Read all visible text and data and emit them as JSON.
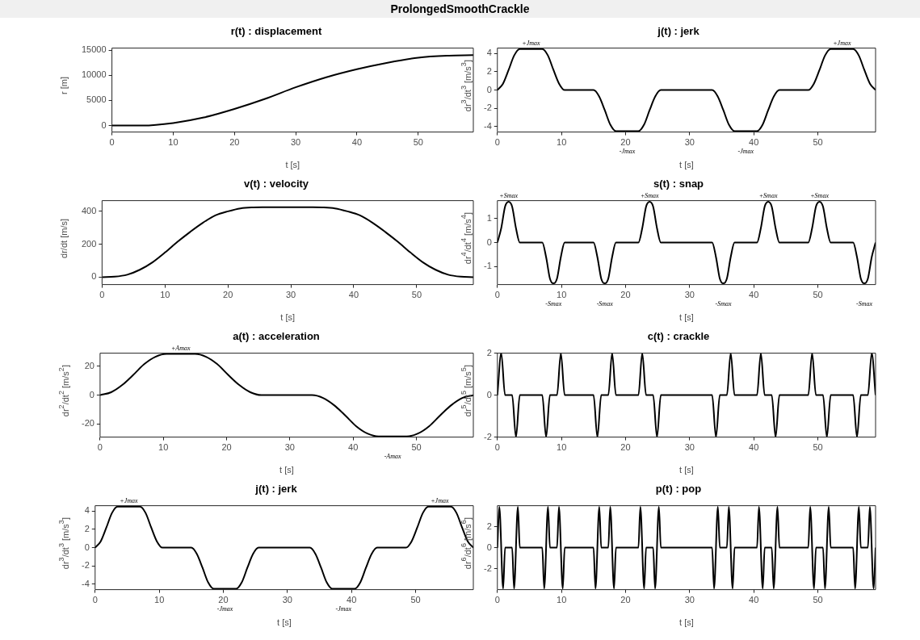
{
  "chart_data": [
    {
      "type": "line",
      "title": "ProlongedSmoothCrackle",
      "subtitle": "r(t) : displacement",
      "xlabel": "t [s]",
      "ylabel": "r [m]",
      "color": "#000000",
      "marker": "none",
      "xlim": [
        0,
        59
      ],
      "xticks": [
        0,
        10,
        20,
        30,
        40,
        50
      ],
      "ylim": [
        -1300,
        15400
      ],
      "yticks": [
        0,
        5000,
        10000,
        15000
      ],
      "x": [
        0,
        5,
        10,
        15,
        20,
        25,
        30,
        35,
        40,
        45,
        50,
        55,
        59
      ],
      "values": [
        0,
        0,
        500,
        1600,
        3300,
        5300,
        7600,
        9600,
        11200,
        12500,
        13500,
        13900,
        14000
      ]
    },
    {
      "type": "line",
      "title": "v(t) : velocity",
      "xlabel": "t [s]",
      "ylabel": "dr/dt [m/s]",
      "color": "#000000",
      "marker": "none",
      "xlim": [
        0,
        59
      ],
      "xticks": [
        0,
        10,
        20,
        30,
        40,
        50
      ],
      "ylim": [
        -45,
        465
      ],
      "yticks": [
        0,
        200,
        400
      ],
      "x": [
        0,
        2,
        4,
        6,
        8,
        10,
        12,
        14,
        16,
        18,
        20,
        22,
        24,
        25.5,
        33.5,
        35,
        37,
        39,
        41,
        43,
        45,
        47,
        49,
        51,
        53,
        55,
        57,
        59
      ],
      "values": [
        0,
        3,
        15,
        45,
        90,
        150,
        215,
        275,
        330,
        375,
        400,
        418,
        424,
        425,
        425,
        424,
        418,
        400,
        375,
        330,
        275,
        215,
        150,
        90,
        45,
        15,
        3,
        0
      ]
    },
    {
      "type": "line",
      "title": "a(t) : acceleration",
      "xlabel": "t [s]",
      "ylabel": "dr$^{2}$/dt$^{2}$ [m/s$^{2}$]",
      "color": "#000000",
      "marker": "none",
      "xlim": [
        0,
        59
      ],
      "xticks": [
        0,
        10,
        20,
        30,
        40,
        50
      ],
      "ylim": [
        -29,
        29
      ],
      "yticks": [
        -20,
        0,
        20
      ],
      "x": [
        0,
        1.75,
        3.5,
        5.25,
        7,
        8.75,
        10.5,
        15,
        16.75,
        18.5,
        20.25,
        22,
        23.75,
        25.5,
        33.5,
        35.25,
        37,
        38.75,
        40.5,
        42.25,
        44,
        48.5,
        50.25,
        52,
        53.75,
        55.5,
        57.25,
        59
      ],
      "values": [
        0,
        2,
        7,
        14,
        21.5,
        26.5,
        28.5,
        28.5,
        26.5,
        21.5,
        14,
        7,
        2,
        0,
        0,
        -2,
        -7,
        -14,
        -21.5,
        -26.5,
        -28.5,
        -28.5,
        -26.5,
        -21.5,
        -14,
        -7,
        -2,
        0
      ],
      "annotations": [
        {
          "text": "+Amax",
          "x": 12.75,
          "y": 28.5
        },
        {
          "text": "-Amax",
          "x": 46.25,
          "y": -28.5
        }
      ]
    },
    {
      "type": "line",
      "title": "j(t) : jerk",
      "xlabel": "t [s]",
      "ylabel": "dr$^{3}$/dt$^{3}$ [m/s$^{3}$]",
      "color": "#000000",
      "marker": "none",
      "xlim": [
        0,
        59
      ],
      "xticks": [
        0,
        10,
        20,
        30,
        40,
        50
      ],
      "ylim": [
        -4.6,
        4.6
      ],
      "yticks": [
        -4,
        -2,
        0,
        2,
        4
      ],
      "x": [
        0,
        0.875,
        1.75,
        2.625,
        3.5,
        7,
        7.875,
        8.75,
        9.625,
        10.5,
        15,
        15.875,
        16.75,
        17.625,
        18.5,
        22,
        22.875,
        23.75,
        24.625,
        25.5,
        33.5,
        34.375,
        35.25,
        36.125,
        37,
        40.5,
        41.375,
        42.25,
        43.125,
        44,
        48.5,
        49.375,
        50.25,
        51.125,
        52,
        55.5,
        56.375,
        57.25,
        58.125,
        59
      ],
      "values": [
        0,
        0.7,
        2.2,
        3.8,
        4.5,
        4.5,
        3.8,
        2.2,
        0.7,
        0,
        0,
        -0.7,
        -2.2,
        -3.8,
        -4.5,
        -4.5,
        -3.8,
        -2.2,
        -0.7,
        0,
        0,
        -0.7,
        -2.2,
        -3.8,
        -4.5,
        -4.5,
        -3.8,
        -2.2,
        -0.7,
        0,
        0,
        0.7,
        2.2,
        3.8,
        4.5,
        4.5,
        3.8,
        2.2,
        0.7,
        0
      ],
      "annotations": [
        {
          "text": "+Jmax",
          "x": 5.25,
          "y": 4.5
        },
        {
          "text": "-Jmax",
          "x": 20.25,
          "y": -4.5
        },
        {
          "text": "-Jmax",
          "x": 38.75,
          "y": -4.5
        },
        {
          "text": "+Jmax",
          "x": 53.75,
          "y": 4.5
        }
      ]
    },
    {
      "type": "line",
      "title": "j(t) : jerk",
      "xlabel": "t [s]",
      "ylabel": "dr$^{3}$/dt$^{3}$ [m/s$^{3}$]",
      "color": "#000000",
      "marker": "none",
      "xlim": [
        0,
        59
      ],
      "xticks": [
        0,
        10,
        20,
        30,
        40,
        50
      ],
      "ylim": [
        -4.6,
        4.6
      ],
      "yticks": [
        -4,
        -2,
        0,
        2,
        4
      ],
      "x": [
        0,
        0.875,
        1.75,
        2.625,
        3.5,
        7,
        7.875,
        8.75,
        9.625,
        10.5,
        15,
        15.875,
        16.75,
        17.625,
        18.5,
        22,
        22.875,
        23.75,
        24.625,
        25.5,
        33.5,
        34.375,
        35.25,
        36.125,
        37,
        40.5,
        41.375,
        42.25,
        43.125,
        44,
        48.5,
        49.375,
        50.25,
        51.125,
        52,
        55.5,
        56.375,
        57.25,
        58.125,
        59
      ],
      "values": [
        0,
        0.7,
        2.2,
        3.8,
        4.5,
        4.5,
        3.8,
        2.2,
        0.7,
        0,
        0,
        -0.7,
        -2.2,
        -3.8,
        -4.5,
        -4.5,
        -3.8,
        -2.2,
        -0.7,
        0,
        0,
        -0.7,
        -2.2,
        -3.8,
        -4.5,
        -4.5,
        -3.8,
        -2.2,
        -0.7,
        0,
        0,
        0.7,
        2.2,
        3.8,
        4.5,
        4.5,
        3.8,
        2.2,
        0.7,
        0
      ],
      "annotations": [
        {
          "text": "+Jmax",
          "x": 5.25,
          "y": 4.5
        },
        {
          "text": "-Jmax",
          "x": 20.25,
          "y": -4.5
        },
        {
          "text": "-Jmax",
          "x": 38.75,
          "y": -4.5
        },
        {
          "text": "+Jmax",
          "x": 53.75,
          "y": 4.5
        }
      ]
    },
    {
      "type": "line",
      "title": "s(t) : snap",
      "xlabel": "t [s]",
      "ylabel": "dr$^{4}$/dt$^{4}$ [m/s$^{4}$]",
      "color": "#000000",
      "marker": "none",
      "xlim": [
        0,
        59
      ],
      "xticks": [
        0,
        10,
        20,
        30,
        40,
        50
      ],
      "ylim": [
        -1.75,
        1.75
      ],
      "yticks": [
        -1,
        0,
        1
      ],
      "x": [
        0,
        0.6,
        1.2,
        1.75,
        2.3,
        2.9,
        3.5,
        7,
        7.6,
        8.2,
        8.75,
        9.3,
        9.9,
        10.5,
        15,
        15.6,
        16.2,
        16.75,
        17.3,
        17.9,
        18.5,
        22,
        22.6,
        23.2,
        23.75,
        24.3,
        24.9,
        25.5,
        33.5,
        34.1,
        34.7,
        35.25,
        35.8,
        36.4,
        37,
        40.5,
        41.1,
        41.7,
        42.25,
        42.8,
        43.4,
        44,
        48.5,
        49.1,
        49.7,
        50.25,
        50.8,
        51.4,
        52,
        55.5,
        56.1,
        56.7,
        57.25,
        57.8,
        58.4,
        59
      ],
      "values": [
        0,
        0.6,
        1.5,
        1.7,
        1.5,
        0.6,
        0,
        0,
        -0.6,
        -1.5,
        -1.7,
        -1.5,
        -0.6,
        0,
        0,
        -0.6,
        -1.5,
        -1.7,
        -1.5,
        -0.6,
        0,
        0,
        0.6,
        1.5,
        1.7,
        1.5,
        0.6,
        0,
        0,
        -0.6,
        -1.5,
        -1.7,
        -1.5,
        -0.6,
        0,
        0,
        0.6,
        1.5,
        1.7,
        1.5,
        0.6,
        0,
        0,
        0.6,
        1.5,
        1.7,
        1.5,
        0.6,
        0,
        0,
        -0.6,
        -1.5,
        -1.7,
        -1.5,
        -0.6,
        0
      ],
      "annotations": [
        {
          "text": "+Smax",
          "x": 1.75,
          "y": 1.7
        },
        {
          "text": "-Smax",
          "x": 8.75,
          "y": -1.7
        },
        {
          "text": "-Smax",
          "x": 16.75,
          "y": -1.7
        },
        {
          "text": "+Smax",
          "x": 23.75,
          "y": 1.7
        },
        {
          "text": "-Smax",
          "x": 35.25,
          "y": -1.7
        },
        {
          "text": "+Smax",
          "x": 42.25,
          "y": 1.7
        },
        {
          "text": "+Smax",
          "x": 50.25,
          "y": 1.7
        },
        {
          "text": "-Smax",
          "x": 57.25,
          "y": -1.7
        }
      ]
    },
    {
      "type": "line",
      "title": "c(t) : crackle",
      "xlabel": "t [s]",
      "ylabel": "dr$^{5}$/dt$^{5}$ [m/s$^{5}$]",
      "color": "#000000",
      "marker": "none",
      "xlim": [
        0,
        59
      ],
      "xticks": [
        0,
        10,
        20,
        30,
        40,
        50
      ],
      "ylim": [
        -2,
        2
      ],
      "yticks": [
        -2,
        0,
        2
      ],
      "x": [
        0,
        0.6,
        1.2,
        2.3,
        2.9,
        3.5,
        7,
        7.6,
        8.2,
        9.3,
        9.9,
        10.5,
        15,
        15.6,
        16.2,
        17.3,
        17.9,
        18.5,
        22,
        22.6,
        23.2,
        24.3,
        24.9,
        25.5,
        33.5,
        34.1,
        34.7,
        35.8,
        36.4,
        37,
        40.5,
        41.1,
        41.7,
        42.8,
        43.4,
        44,
        48.5,
        49.1,
        49.7,
        50.8,
        51.4,
        52,
        55.5,
        56.1,
        56.7,
        57.8,
        58.4,
        59
      ],
      "values": [
        0,
        2,
        0,
        0,
        -2,
        0,
        0,
        -2,
        0,
        0,
        2,
        0,
        0,
        -2,
        0,
        0,
        2,
        0,
        0,
        2,
        0,
        0,
        -2,
        0,
        0,
        -2,
        0,
        0,
        2,
        0,
        0,
        2,
        0,
        0,
        -2,
        0,
        0,
        2,
        0,
        0,
        -2,
        0,
        0,
        -2,
        0,
        0,
        2,
        0
      ]
    },
    {
      "type": "line",
      "title": "p(t) : pop",
      "xlabel": "t [s]",
      "ylabel": "dr$^{6}$/dt$^{6}$ [m/s$^{6}$]",
      "color": "#000000",
      "marker": "none",
      "xlim": [
        0,
        59
      ],
      "xticks": [
        0,
        10,
        20,
        30,
        40,
        50
      ],
      "ylim": [
        -4,
        4
      ],
      "yticks": [
        -2,
        0,
        2
      ],
      "x": [
        0,
        0.3,
        0.9,
        1.2,
        2.3,
        2.6,
        3.2,
        3.5,
        7,
        7.3,
        7.9,
        8.2,
        9.3,
        9.6,
        10.2,
        10.5,
        15,
        15.3,
        15.9,
        16.2,
        17.3,
        17.6,
        18.2,
        18.5,
        22,
        22.3,
        22.9,
        23.2,
        24.3,
        24.6,
        25.2,
        25.5,
        33.5,
        33.8,
        34.4,
        34.7,
        35.8,
        36.1,
        36.7,
        37,
        40.5,
        40.8,
        41.4,
        41.7,
        42.8,
        43.1,
        43.7,
        44,
        48.5,
        48.8,
        49.4,
        49.7,
        50.8,
        51.1,
        51.7,
        52,
        55.5,
        55.8,
        56.4,
        56.7,
        57.8,
        58.1,
        58.7,
        59
      ],
      "values": [
        0,
        3.9,
        -3.9,
        0,
        0,
        -3.9,
        3.9,
        0,
        0,
        -3.9,
        3.9,
        0,
        0,
        3.9,
        -3.9,
        0,
        0,
        -3.9,
        3.9,
        0,
        0,
        3.9,
        -3.9,
        0,
        0,
        3.9,
        -3.9,
        0,
        0,
        -3.9,
        3.9,
        0,
        0,
        -3.9,
        3.9,
        0,
        0,
        3.9,
        -3.9,
        0,
        0,
        3.9,
        -3.9,
        0,
        0,
        -3.9,
        3.9,
        0,
        0,
        3.9,
        -3.9,
        0,
        0,
        -3.9,
        3.9,
        0,
        0,
        -3.9,
        3.9,
        0,
        0,
        3.9,
        -3.9,
        0
      ]
    }
  ]
}
